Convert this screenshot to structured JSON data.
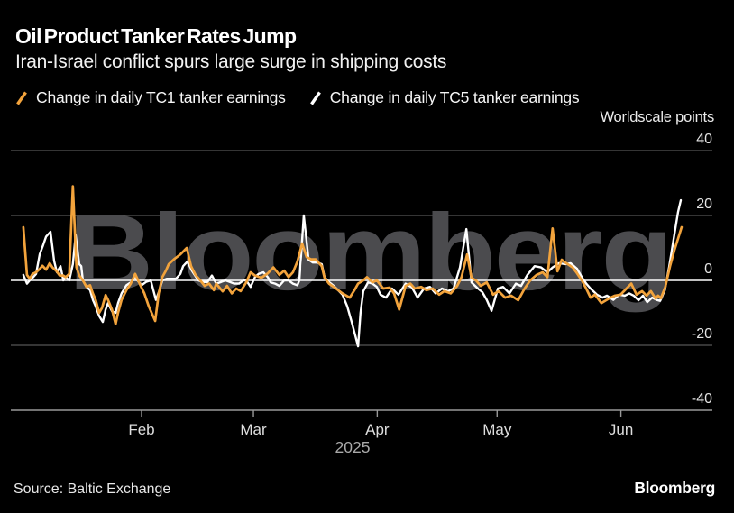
{
  "header": {
    "title": "Oil Product Tanker Rates Jump",
    "subtitle": "Iran-Israel conflict spurs large surge in shipping costs"
  },
  "axis_title": "Worldscale points",
  "watermark": "Bloomberg",
  "footer": {
    "source": "Source: Baltic Exchange",
    "brand": "Bloomberg"
  },
  "colors": {
    "background": "#000000",
    "tc1_line": "#F2A33C",
    "tc5_line": "#FFFFFF",
    "gridline": "#555555",
    "zero_line": "#FFFFFF",
    "axis_line": "#999999",
    "watermark": "#4B4B4E",
    "y_tick_label": "#E4E4E4",
    "month_label": "#DEDEDE",
    "year_label": "#A9A9A9"
  },
  "chart_data": {
    "type": "line",
    "title": "Oil Product Tanker Rates Jump",
    "subtitle": "Iran-Israel conflict spurs large surge in shipping costs",
    "ylabel": "Worldscale points",
    "ylim": [
      -40,
      40
    ],
    "y_ticks": [
      {
        "label": "40",
        "value": 40
      },
      {
        "label": "20",
        "value": 20
      },
      {
        "label": "0",
        "value": 0
      },
      {
        "label": "-20",
        "value": -20
      },
      {
        "label": "-40",
        "value": -40
      }
    ],
    "x_unit": "day_of_year_2025",
    "x_range": [
      2,
      168
    ],
    "x_ticks": [
      {
        "label": "Feb",
        "doy": 32
      },
      {
        "label": "Mar",
        "doy": 60
      },
      {
        "label": "Apr",
        "doy": 91
      },
      {
        "label": "May",
        "doy": 121
      },
      {
        "label": "Jun",
        "doy": 152
      }
    ],
    "year_label": "2025",
    "grid": "horizontal",
    "legend_position": "top",
    "series": [
      {
        "name": "Change in daily TC1 tanker earnings",
        "color": "#F2A33C",
        "points": [
          [
            2.4,
            16.4
          ],
          [
            3.3,
            1.7
          ],
          [
            4.0,
            0.5
          ],
          [
            4.7,
            2.0
          ],
          [
            5.6,
            2.5
          ],
          [
            6.5,
            3.5
          ],
          [
            7.2,
            4.5
          ],
          [
            8.1,
            3.3
          ],
          [
            9.0,
            5.3
          ],
          [
            9.7,
            4.0
          ],
          [
            10.6,
            3.0
          ],
          [
            11.5,
            1.5
          ],
          [
            12.4,
            1.5
          ],
          [
            13.0,
            1.0
          ],
          [
            13.9,
            2.0
          ],
          [
            14.8,
            29.0
          ],
          [
            15.7,
            4.0
          ],
          [
            16.4,
            1.5
          ],
          [
            17.3,
            0.0
          ],
          [
            18.2,
            -2.0
          ],
          [
            19.1,
            -1.5
          ],
          [
            19.8,
            -4.0
          ],
          [
            20.5,
            -6.0
          ],
          [
            21.4,
            -10.0
          ],
          [
            22.1,
            -8.5
          ],
          [
            23.0,
            -4.5
          ],
          [
            23.6,
            -6.0
          ],
          [
            24.6,
            -9.0
          ],
          [
            25.5,
            -13.5
          ],
          [
            26.1,
            -10.0
          ],
          [
            27.0,
            -6.0
          ],
          [
            28.2,
            -3.0
          ],
          [
            29.3,
            -1.0
          ],
          [
            30.4,
            2.0
          ],
          [
            31.5,
            -1.0
          ],
          [
            32.7,
            -4.0
          ],
          [
            33.8,
            -8.0
          ],
          [
            35.4,
            -12.5
          ],
          [
            36.3,
            -4.0
          ],
          [
            37.2,
            1.0
          ],
          [
            38.1,
            3.0
          ],
          [
            38.8,
            5.0
          ],
          [
            40.1,
            6.5
          ],
          [
            41.7,
            8.0
          ],
          [
            43.3,
            10.0
          ],
          [
            44.4,
            4.4
          ],
          [
            45.5,
            1.7
          ],
          [
            46.7,
            0.0
          ],
          [
            47.8,
            -1.7
          ],
          [
            48.9,
            -1.0
          ],
          [
            50.1,
            -3.0
          ],
          [
            50.7,
            -1.0
          ],
          [
            52.3,
            -3.4
          ],
          [
            53.4,
            -1.7
          ],
          [
            54.6,
            -4.0
          ],
          [
            55.7,
            -2.5
          ],
          [
            56.8,
            -3.3
          ],
          [
            58.2,
            -0.6
          ],
          [
            59.3,
            2.5
          ],
          [
            60.4,
            1.5
          ],
          [
            62.0,
            0.8
          ],
          [
            63.6,
            2.2
          ],
          [
            65.0,
            4.0
          ],
          [
            66.5,
            1.7
          ],
          [
            67.7,
            3.0
          ],
          [
            68.8,
            1.0
          ],
          [
            69.9,
            2.5
          ],
          [
            71.0,
            5.8
          ],
          [
            72.2,
            11.4
          ],
          [
            73.3,
            7.2
          ],
          [
            74.4,
            6.5
          ],
          [
            75.6,
            6.5
          ],
          [
            77.1,
            4.4
          ],
          [
            77.8,
            0.8
          ],
          [
            78.9,
            -1.0
          ],
          [
            80.1,
            -2.0
          ],
          [
            81.2,
            -3.0
          ],
          [
            82.3,
            -4.0
          ],
          [
            84.1,
            -5.3
          ],
          [
            85.3,
            -3.0
          ],
          [
            86.2,
            -1.0
          ],
          [
            87.5,
            0.0
          ],
          [
            88.4,
            1.0
          ],
          [
            89.8,
            -0.6
          ],
          [
            90.9,
            0.0
          ],
          [
            92.5,
            -2.5
          ],
          [
            94.1,
            -2.2
          ],
          [
            95.2,
            -4.0
          ],
          [
            96.5,
            -9.0
          ],
          [
            98.1,
            -1.7
          ],
          [
            99.3,
            -1.0
          ],
          [
            100.4,
            -2.5
          ],
          [
            102.0,
            -2.0
          ],
          [
            103.3,
            -3.0
          ],
          [
            104.9,
            -2.5
          ],
          [
            106.5,
            -4.4
          ],
          [
            107.8,
            -3.3
          ],
          [
            109.4,
            -4.0
          ],
          [
            111.0,
            -1.7
          ],
          [
            112.1,
            1.0
          ],
          [
            113.5,
            8.0
          ],
          [
            114.6,
            0.8
          ],
          [
            115.7,
            0.0
          ],
          [
            116.9,
            -1.7
          ],
          [
            118.4,
            -0.6
          ],
          [
            120.0,
            -4.4
          ],
          [
            121.4,
            -3.3
          ],
          [
            123.0,
            -5.3
          ],
          [
            124.5,
            -4.7
          ],
          [
            126.3,
            -6.1
          ],
          [
            127.9,
            -2.5
          ],
          [
            129.3,
            0.0
          ],
          [
            130.9,
            1.7
          ],
          [
            132.4,
            2.5
          ],
          [
            133.6,
            1.0
          ],
          [
            134.9,
            16.0
          ],
          [
            135.6,
            8.6
          ],
          [
            136.1,
            2.8
          ],
          [
            137.2,
            6.4
          ],
          [
            138.3,
            5.3
          ],
          [
            139.9,
            4.0
          ],
          [
            141.0,
            2.2
          ],
          [
            142.2,
            0.0
          ],
          [
            143.3,
            -2.5
          ],
          [
            144.4,
            -5.3
          ],
          [
            145.5,
            -4.4
          ],
          [
            147.1,
            -7.0
          ],
          [
            148.3,
            -6.1
          ],
          [
            149.4,
            -5.3
          ],
          [
            150.5,
            -4.7
          ],
          [
            151.9,
            -4.4
          ],
          [
            153.4,
            -2.5
          ],
          [
            154.6,
            -1.0
          ],
          [
            155.9,
            -4.4
          ],
          [
            157.3,
            -3.3
          ],
          [
            158.4,
            -4.7
          ],
          [
            159.5,
            -3.3
          ],
          [
            160.7,
            -5.6
          ],
          [
            161.3,
            -4.7
          ],
          [
            162.0,
            -5.5
          ],
          [
            163.1,
            -2.0
          ],
          [
            164.3,
            4.4
          ],
          [
            165.4,
            9.4
          ],
          [
            166.5,
            13.6
          ],
          [
            167.2,
            16.4
          ]
        ]
      },
      {
        "name": "Change in daily TC5 tanker earnings",
        "color": "#FFFFFF",
        "points": [
          [
            2.4,
            1.7
          ],
          [
            3.3,
            -1.0
          ],
          [
            4.0,
            0.0
          ],
          [
            4.9,
            1.0
          ],
          [
            5.6,
            2.0
          ],
          [
            6.5,
            8.0
          ],
          [
            7.4,
            11.0
          ],
          [
            8.1,
            13.5
          ],
          [
            9.2,
            15.0
          ],
          [
            10.1,
            6.0
          ],
          [
            10.8,
            2.5
          ],
          [
            11.7,
            4.4
          ],
          [
            12.4,
            0.0
          ],
          [
            13.0,
            1.0
          ],
          [
            13.9,
            0.0
          ],
          [
            14.8,
            5.0
          ],
          [
            15.5,
            14.0
          ],
          [
            16.4,
            5.0
          ],
          [
            16.9,
            4.4
          ],
          [
            17.3,
            0.0
          ],
          [
            18.2,
            -2.0
          ],
          [
            19.1,
            -3.0
          ],
          [
            19.8,
            -6.0
          ],
          [
            20.5,
            -8.0
          ],
          [
            21.4,
            -11.0
          ],
          [
            22.3,
            -12.8
          ],
          [
            23.0,
            -9.0
          ],
          [
            23.6,
            -7.0
          ],
          [
            24.6,
            -9.5
          ],
          [
            25.5,
            -10.0
          ],
          [
            26.1,
            -7.0
          ],
          [
            27.0,
            -4.0
          ],
          [
            28.2,
            -1.5
          ],
          [
            29.3,
            -0.6
          ],
          [
            30.4,
            0.8
          ],
          [
            32.0,
            -1.5
          ],
          [
            33.1,
            -0.5
          ],
          [
            34.3,
            0.0
          ],
          [
            35.6,
            -6.0
          ],
          [
            36.5,
            -3.0
          ],
          [
            37.2,
            0.0
          ],
          [
            38.3,
            0.5
          ],
          [
            39.4,
            0.5
          ],
          [
            40.6,
            0.5
          ],
          [
            41.7,
            2.0
          ],
          [
            42.4,
            4.4
          ],
          [
            43.5,
            5.8
          ],
          [
            44.6,
            3.0
          ],
          [
            46.2,
            0.0
          ],
          [
            47.3,
            -0.5
          ],
          [
            48.5,
            -0.5
          ],
          [
            49.6,
            1.5
          ],
          [
            50.7,
            -1.0
          ],
          [
            51.9,
            -0.5
          ],
          [
            53.0,
            0.0
          ],
          [
            54.1,
            -0.5
          ],
          [
            55.2,
            -1.0
          ],
          [
            56.4,
            -1.0
          ],
          [
            57.5,
            0.0
          ],
          [
            58.2,
            0.0
          ],
          [
            59.3,
            -2.0
          ],
          [
            60.4,
            1.0
          ],
          [
            61.3,
            2.0
          ],
          [
            62.5,
            2.5
          ],
          [
            63.6,
            1.0
          ],
          [
            64.3,
            -0.6
          ],
          [
            65.4,
            -1.0
          ],
          [
            66.5,
            -1.7
          ],
          [
            67.7,
            0.0
          ],
          [
            68.8,
            0.0
          ],
          [
            69.9,
            -1.0
          ],
          [
            71.0,
            -1.5
          ],
          [
            71.5,
            0.0
          ],
          [
            72.6,
            20.0
          ],
          [
            73.8,
            6.4
          ],
          [
            74.9,
            5.5
          ],
          [
            76.0,
            5.5
          ],
          [
            77.1,
            5.0
          ],
          [
            77.8,
            1.0
          ],
          [
            78.9,
            -0.5
          ],
          [
            80.1,
            -1.7
          ],
          [
            81.2,
            -3.0
          ],
          [
            82.3,
            -4.4
          ],
          [
            83.5,
            -8.0
          ],
          [
            84.6,
            -12.8
          ],
          [
            85.5,
            -17.0
          ],
          [
            86.2,
            -20.3
          ],
          [
            86.8,
            -10.0
          ],
          [
            87.5,
            -3.3
          ],
          [
            88.7,
            -0.6
          ],
          [
            89.8,
            -1.0
          ],
          [
            90.9,
            -2.0
          ],
          [
            91.8,
            -4.4
          ],
          [
            93.2,
            -5.3
          ],
          [
            94.7,
            -2.5
          ],
          [
            96.3,
            -4.4
          ],
          [
            98.1,
            -1.0
          ],
          [
            99.7,
            -2.2
          ],
          [
            101.1,
            -5.3
          ],
          [
            102.7,
            -2.5
          ],
          [
            104.2,
            -2.0
          ],
          [
            105.6,
            -4.0
          ],
          [
            107.2,
            -2.5
          ],
          [
            108.7,
            -3.3
          ],
          [
            110.1,
            -2.5
          ],
          [
            111.7,
            4.0
          ],
          [
            113.3,
            15.8
          ],
          [
            114.6,
            -0.6
          ],
          [
            116.2,
            -2.5
          ],
          [
            117.3,
            -3.6
          ],
          [
            118.4,
            -6.0
          ],
          [
            119.6,
            -9.4
          ],
          [
            121.2,
            -2.5
          ],
          [
            122.5,
            -2.0
          ],
          [
            124.1,
            -4.0
          ],
          [
            125.7,
            -1.0
          ],
          [
            127.0,
            -1.7
          ],
          [
            128.6,
            1.7
          ],
          [
            130.4,
            4.4
          ],
          [
            132.0,
            4.0
          ],
          [
            133.6,
            2.5
          ],
          [
            134.9,
            4.0
          ],
          [
            136.5,
            5.3
          ],
          [
            138.1,
            5.0
          ],
          [
            139.4,
            5.3
          ],
          [
            141.0,
            3.6
          ],
          [
            142.2,
            1.0
          ],
          [
            143.3,
            -1.0
          ],
          [
            144.4,
            -2.5
          ],
          [
            146.0,
            -4.4
          ],
          [
            147.4,
            -5.3
          ],
          [
            148.5,
            -4.7
          ],
          [
            150.1,
            -6.0
          ],
          [
            151.6,
            -4.4
          ],
          [
            153.0,
            -4.7
          ],
          [
            154.1,
            -4.0
          ],
          [
            155.2,
            -4.7
          ],
          [
            156.4,
            -6.1
          ],
          [
            157.5,
            -4.7
          ],
          [
            158.6,
            -6.7
          ],
          [
            159.8,
            -5.3
          ],
          [
            160.9,
            -6.0
          ],
          [
            161.8,
            -6.3
          ],
          [
            163.0,
            -3.0
          ],
          [
            164.1,
            4.4
          ],
          [
            165.2,
            12.8
          ],
          [
            166.3,
            21.0
          ],
          [
            167.0,
            24.7
          ]
        ]
      }
    ]
  }
}
